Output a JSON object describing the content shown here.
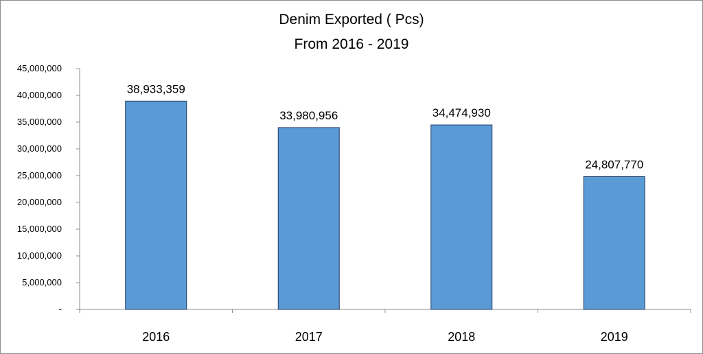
{
  "chart_data": {
    "type": "bar",
    "title": "Denim Exported ( Pcs)",
    "subtitle": "From 2016 - 2019",
    "categories": [
      "2016",
      "2017",
      "2018",
      "2019"
    ],
    "values": [
      38933359,
      33980956,
      34474930,
      24807770
    ],
    "data_labels": [
      "38,933,359",
      "33,980,956",
      "34,474,930",
      "24,807,770"
    ],
    "ylim": [
      0,
      45000000
    ],
    "yticks": [
      0,
      5000000,
      10000000,
      15000000,
      20000000,
      25000000,
      30000000,
      35000000,
      40000000,
      45000000
    ],
    "ytick_labels": [
      "-",
      "5,000,000",
      "10,000,000",
      "15,000,000",
      "20,000,000",
      "25,000,000",
      "30,000,000",
      "35,000,000",
      "40,000,000",
      "45,000,000"
    ],
    "xlabel": "",
    "ylabel": "",
    "grid": false,
    "legend": "none",
    "bar_color": "#5b9bd5",
    "bar_edge_color": "#1f3864"
  }
}
